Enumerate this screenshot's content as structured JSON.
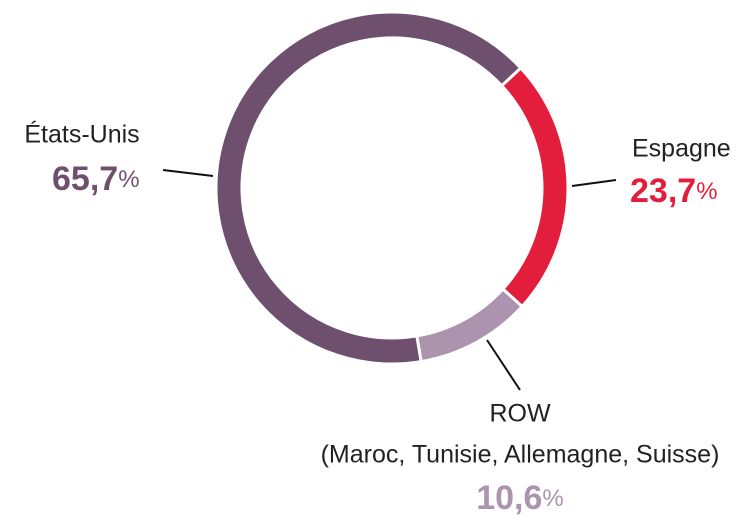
{
  "chart_data": {
    "type": "donut",
    "categories": [
      "Espagne",
      "ROW",
      "États-Unis"
    ],
    "values": [
      23.7,
      10.6,
      65.7
    ],
    "value_labels": [
      "23,7%",
      "10,6%",
      "65,7%"
    ],
    "colors": [
      "#e31e3c",
      "#ac93ae",
      "#6e4f6e"
    ],
    "annotations": [
      "(Maroc, Tunisie, Allemagne, Suisse)"
    ]
  }
}
